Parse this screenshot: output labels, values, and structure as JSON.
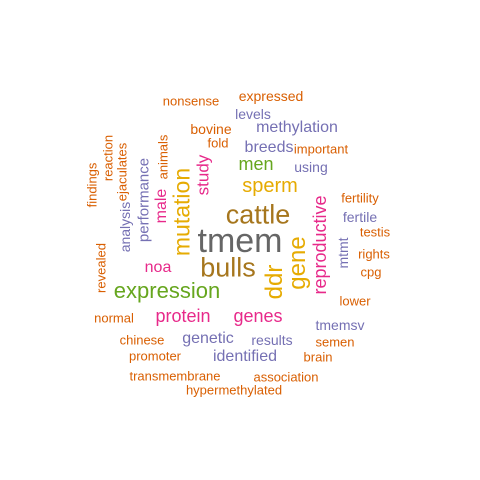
{
  "colors": {
    "orange": "#D95F02",
    "purple": "#7570B3",
    "pink": "#E7298A",
    "green": "#66A61E",
    "gold": "#E6AB02",
    "brown": "#A6761D",
    "gray": "#666666"
  },
  "words": [
    {
      "text": "tmem",
      "color": "gray",
      "vertical": false
    },
    {
      "text": "cattle",
      "color": "brown",
      "vertical": false
    },
    {
      "text": "bulls",
      "color": "brown",
      "vertical": false
    },
    {
      "text": "expression",
      "color": "green",
      "vertical": false
    },
    {
      "text": "sperm",
      "color": "gold",
      "vertical": false
    },
    {
      "text": "ddr",
      "color": "gold",
      "vertical": true
    },
    {
      "text": "gene",
      "color": "gold",
      "vertical": true
    },
    {
      "text": "mutation",
      "color": "gold",
      "vertical": true
    },
    {
      "text": "reproductive",
      "color": "pink",
      "vertical": true
    },
    {
      "text": "protein",
      "color": "pink",
      "vertical": false
    },
    {
      "text": "genes",
      "color": "pink",
      "vertical": false
    },
    {
      "text": "men",
      "color": "green",
      "vertical": false
    },
    {
      "text": "methylation",
      "color": "purple",
      "vertical": false
    },
    {
      "text": "study",
      "color": "pink",
      "vertical": true
    },
    {
      "text": "male",
      "color": "pink",
      "vertical": true
    },
    {
      "text": "noa",
      "color": "pink",
      "vertical": false
    },
    {
      "text": "identified",
      "color": "purple",
      "vertical": false
    },
    {
      "text": "genetic",
      "color": "purple",
      "vertical": false
    },
    {
      "text": "breeds",
      "color": "purple",
      "vertical": false
    },
    {
      "text": "performance",
      "color": "purple",
      "vertical": true
    },
    {
      "text": "analysis",
      "color": "purple",
      "vertical": true
    },
    {
      "text": "expressed",
      "color": "orange",
      "vertical": false
    },
    {
      "text": "bovine",
      "color": "orange",
      "vertical": false
    },
    {
      "text": "levels",
      "color": "purple",
      "vertical": false
    },
    {
      "text": "using",
      "color": "purple",
      "vertical": false
    },
    {
      "text": "fertile",
      "color": "purple",
      "vertical": false
    },
    {
      "text": "mtmt",
      "color": "purple",
      "vertical": true
    },
    {
      "text": "tmemsv",
      "color": "purple",
      "vertical": false
    },
    {
      "text": "results",
      "color": "purple",
      "vertical": false
    },
    {
      "text": "nonsense",
      "color": "orange",
      "vertical": false
    },
    {
      "text": "fold",
      "color": "orange",
      "vertical": false
    },
    {
      "text": "important",
      "color": "orange",
      "vertical": false
    },
    {
      "text": "animals",
      "color": "orange",
      "vertical": true
    },
    {
      "text": "ejaculates",
      "color": "orange",
      "vertical": true
    },
    {
      "text": "reaction",
      "color": "orange",
      "vertical": true
    },
    {
      "text": "findings",
      "color": "orange",
      "vertical": true
    },
    {
      "text": "fertility",
      "color": "orange",
      "vertical": false
    },
    {
      "text": "testis",
      "color": "orange",
      "vertical": false
    },
    {
      "text": "rights",
      "color": "orange",
      "vertical": false
    },
    {
      "text": "cpg",
      "color": "orange",
      "vertical": false
    },
    {
      "text": "lower",
      "color": "orange",
      "vertical": false
    },
    {
      "text": "revealed",
      "color": "orange",
      "vertical": true
    },
    {
      "text": "normal",
      "color": "orange",
      "vertical": false
    },
    {
      "text": "chinese",
      "color": "orange",
      "vertical": false
    },
    {
      "text": "promoter",
      "color": "orange",
      "vertical": false
    },
    {
      "text": "semen",
      "color": "orange",
      "vertical": false
    },
    {
      "text": "brain",
      "color": "orange",
      "vertical": false
    },
    {
      "text": "transmembrane",
      "color": "orange",
      "vertical": false
    },
    {
      "text": "association",
      "color": "orange",
      "vertical": false
    },
    {
      "text": "hypermethylated",
      "color": "orange",
      "vertical": false
    }
  ]
}
